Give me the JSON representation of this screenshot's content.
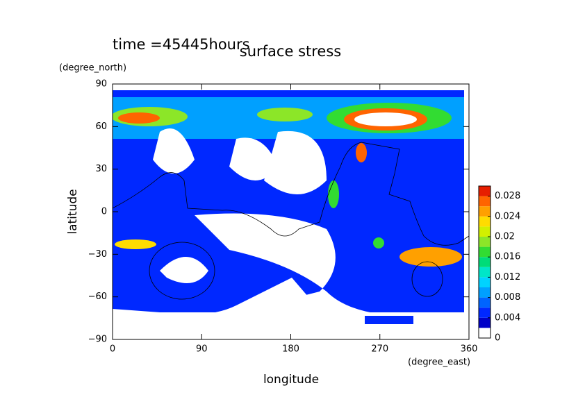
{
  "chart_data": {
    "type": "contour",
    "title": "surface stress",
    "subtitle": "time =45445hours",
    "y_unit": "(degree_north)",
    "x_unit": "(degree_east)",
    "x_label": "longitude",
    "y_label": "latitude",
    "xlim": [
      0,
      360
    ],
    "ylim": [
      -90,
      90
    ],
    "xticks": [
      0,
      90,
      180,
      270,
      360
    ],
    "yticks": [
      {
        "value": -90,
        "label": "−90"
      },
      {
        "value": -60,
        "label": "−60"
      },
      {
        "value": -30,
        "label": "−30"
      },
      0,
      30,
      60,
      90
    ],
    "colorbar": {
      "levels": [
        0,
        0.002,
        0.004,
        0.006,
        0.008,
        0.01,
        0.012,
        0.014,
        0.016,
        0.018,
        0.02,
        0.022,
        0.024,
        0.026,
        0.028,
        0.03
      ],
      "colors": [
        "#ffffff",
        "#0000c8",
        "#0028ff",
        "#0064ff",
        "#00a0ff",
        "#00d2ff",
        "#00e6c8",
        "#00dc78",
        "#32dc32",
        "#8ce628",
        "#d2f000",
        "#ffdc00",
        "#ffa000",
        "#ff6400",
        "#e61e00"
      ],
      "ticks": [
        0,
        0.004,
        0.008,
        0.012,
        0.016,
        0.02,
        0.024,
        0.028
      ]
    }
  }
}
